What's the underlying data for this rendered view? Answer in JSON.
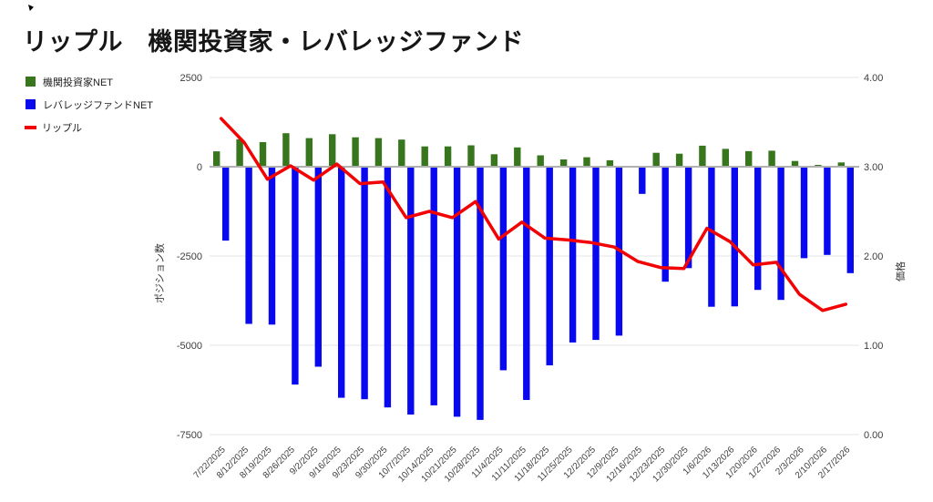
{
  "title": "リップル　機関投資家・レバレッジファンド",
  "legend": {
    "items": [
      {
        "label": "機関投資家NET",
        "color": "#38761d",
        "type": "square"
      },
      {
        "label": "レバレッジファンドNET",
        "color": "#0909ef",
        "type": "square"
      },
      {
        "label": "リップル",
        "color": "#f20202",
        "type": "line"
      }
    ]
  },
  "chart_data": {
    "type": "bar",
    "subtype": "grouped-bars-with-line-overlay",
    "title": "リップル　機関投資家・レバレッジファンド",
    "grid": true,
    "legend_position": "top-left",
    "categories": [
      "7/22/2025",
      "8/12/2025",
      "8/19/2025",
      "8/26/2025",
      "9/2/2025",
      "9/16/2025",
      "9/23/2025",
      "9/30/2025",
      "10/7/2025",
      "10/14/2025",
      "10/21/2025",
      "10/28/2025",
      "11/4/2025",
      "11/11/2025",
      "11/18/2025",
      "11/25/2025",
      "12/2/2025",
      "12/9/2025",
      "12/16/2025",
      "12/23/2025",
      "12/30/2025",
      "1/6/2026",
      "1/13/2026",
      "1/20/2026",
      "1/27/2026",
      "2/3/2026",
      "2/10/2026",
      "2/17/2026"
    ],
    "series": [
      {
        "name": "機関投資家NET",
        "type": "bar",
        "axis": "left",
        "color": "#38761d",
        "values": [
          430,
          770,
          690,
          940,
          800,
          910,
          825,
          800,
          760,
          570,
          570,
          600,
          350,
          540,
          320,
          205,
          265,
          180,
          0,
          390,
          365,
          590,
          500,
          435,
          450,
          160,
          50,
          120
        ]
      },
      {
        "name": "レバレッジファンドNET",
        "type": "bar",
        "axis": "left",
        "color": "#0909ef",
        "values": [
          -2070,
          -4400,
          -4420,
          -6100,
          -5600,
          -6470,
          -6510,
          -6740,
          -6940,
          -6680,
          -7000,
          -7090,
          -5700,
          -6530,
          -5560,
          -4920,
          -4850,
          -4730,
          -760,
          -3220,
          -2840,
          -3920,
          -3910,
          -3450,
          -3730,
          -2560,
          -2470,
          -2980
        ]
      },
      {
        "name": "リップル",
        "type": "line",
        "axis": "right",
        "color": "#f20202",
        "values": [
          3.54,
          3.27,
          2.86,
          3.01,
          2.85,
          3.03,
          2.81,
          2.83,
          2.43,
          2.5,
          2.43,
          2.61,
          2.19,
          2.38,
          2.2,
          2.18,
          2.15,
          2.1,
          1.94,
          1.87,
          1.86,
          2.31,
          2.16,
          1.9,
          1.93,
          1.57,
          1.39,
          1.46
        ]
      }
    ],
    "left_axis": {
      "label": "ポジション数",
      "ticks": [
        "2500",
        "0",
        "-2500",
        "-5000",
        "-7500"
      ],
      "range": [
        -7500,
        2500
      ]
    },
    "right_axis": {
      "label": "価格",
      "ticks": [
        "4.00",
        "3.00",
        "2.00",
        "1.00",
        "0.00"
      ],
      "range": [
        0,
        4
      ]
    }
  }
}
